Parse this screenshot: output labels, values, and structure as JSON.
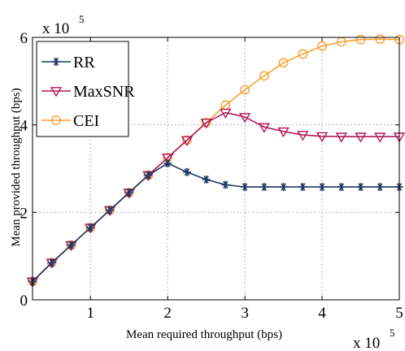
{
  "chart_data": {
    "type": "line",
    "title": "",
    "xlabel": "Mean required throughput (bps)",
    "ylabel": "Mean provided throughput (bps)",
    "x_multiplier": {
      "base": "x 10",
      "exp": "5"
    },
    "y_multiplier": {
      "base": "x 10",
      "exp": "5"
    },
    "xlim": [
      0.25,
      5
    ],
    "ylim": [
      0,
      6
    ],
    "xticks": [
      1,
      2,
      3,
      4,
      5
    ],
    "yticks": [
      0,
      2,
      4,
      6
    ],
    "xtick_labels": [
      "1",
      "2",
      "3",
      "4",
      "5"
    ],
    "ytick_labels": [
      "0",
      "2",
      "4",
      "6"
    ],
    "grid": true,
    "legend_position": "top-left",
    "x": [
      0.25,
      0.5,
      0.75,
      1.0,
      1.25,
      1.5,
      1.75,
      2.0,
      2.25,
      2.5,
      2.75,
      3.0,
      3.25,
      3.5,
      3.75,
      4.0,
      4.25,
      4.5,
      4.75,
      5.0
    ],
    "series": [
      {
        "name": "RR",
        "color": "#1f3864",
        "marker": "asterisk",
        "values": [
          0.42,
          0.85,
          1.25,
          1.65,
          2.05,
          2.45,
          2.85,
          3.12,
          2.92,
          2.75,
          2.63,
          2.58,
          2.58,
          2.58,
          2.58,
          2.58,
          2.58,
          2.58,
          2.58,
          2.58
        ]
      },
      {
        "name": "MaxSNR",
        "color": "#b0185b",
        "marker": "triangle-down",
        "values": [
          0.42,
          0.85,
          1.25,
          1.65,
          2.05,
          2.45,
          2.85,
          3.25,
          3.65,
          4.05,
          4.28,
          4.18,
          3.95,
          3.85,
          3.77,
          3.74,
          3.73,
          3.73,
          3.73,
          3.73
        ]
      },
      {
        "name": "CEI",
        "color": "#f5a030",
        "marker": "circle",
        "values": [
          0.42,
          0.85,
          1.25,
          1.65,
          2.05,
          2.45,
          2.85,
          3.25,
          3.65,
          4.05,
          4.45,
          4.8,
          5.12,
          5.42,
          5.62,
          5.8,
          5.9,
          5.95,
          5.96,
          5.95
        ]
      }
    ]
  }
}
